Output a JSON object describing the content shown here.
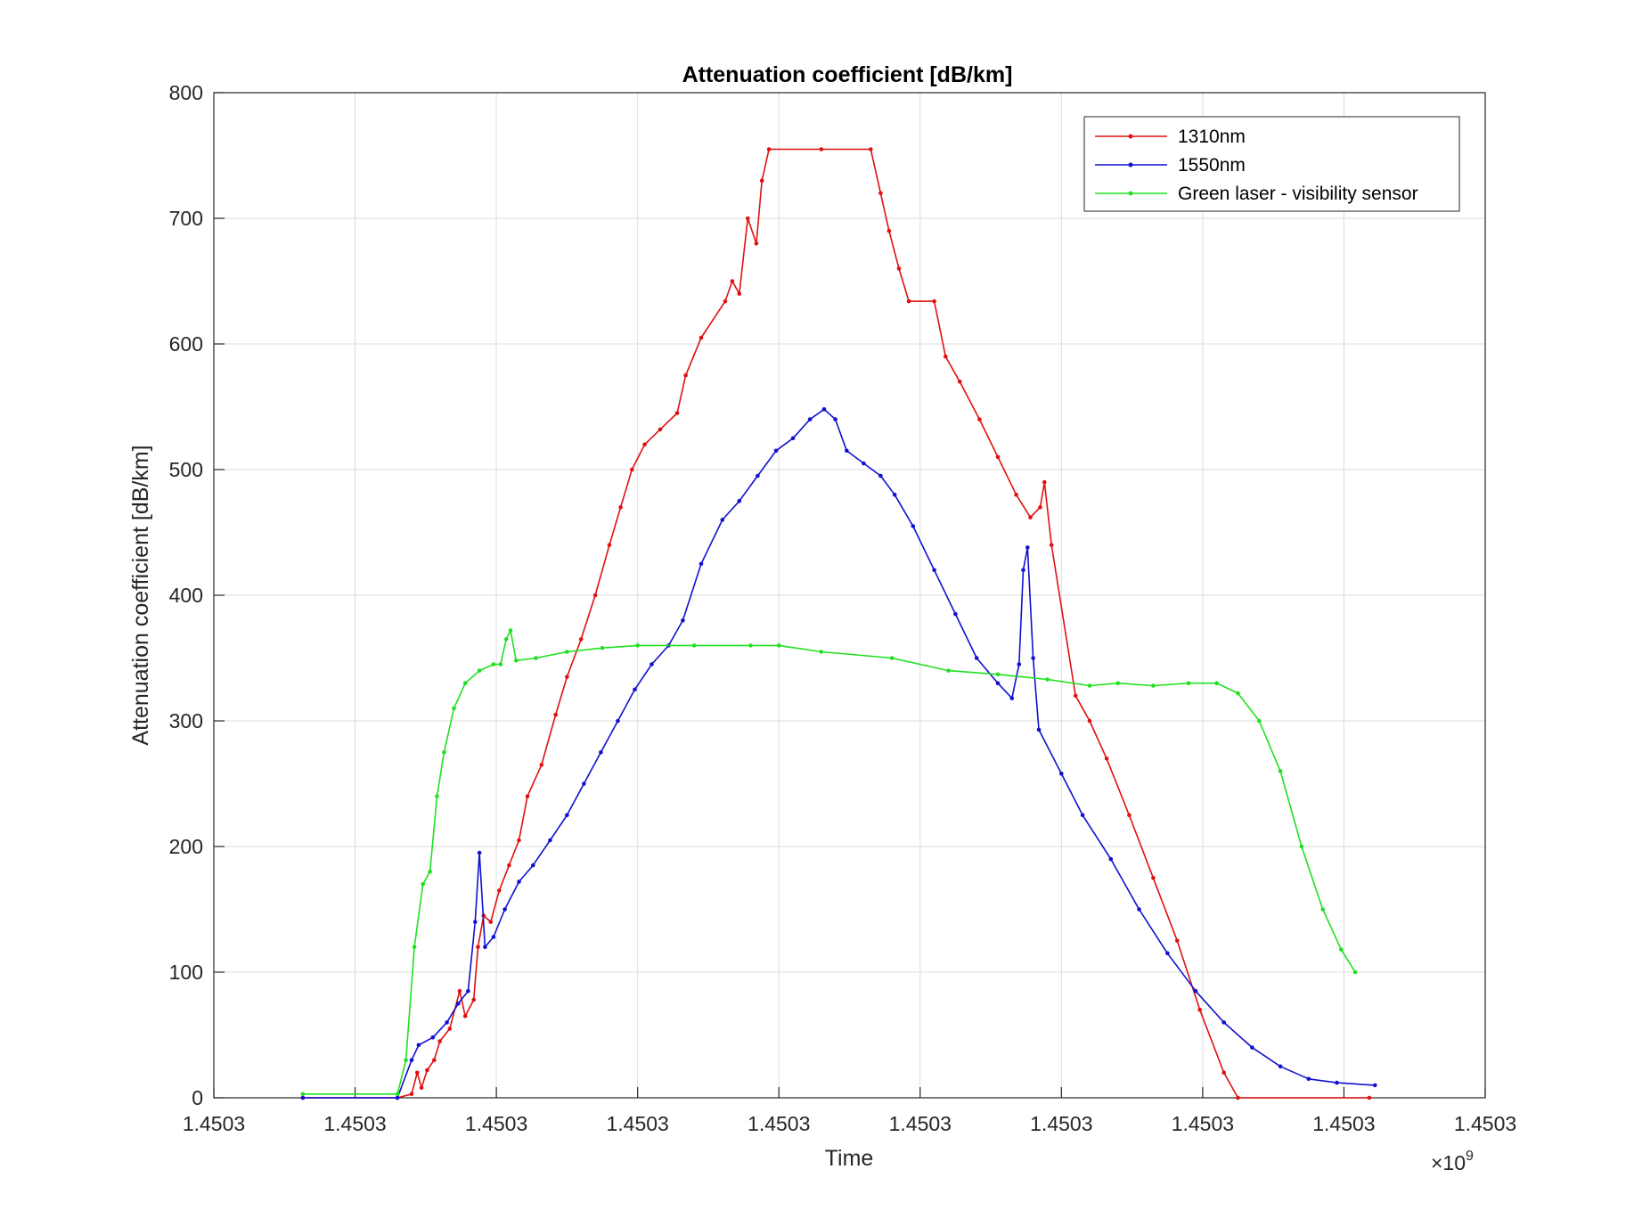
{
  "chart_data": {
    "type": "line",
    "title": "Attenuation coefficient [dB/km]",
    "xlabel": "Time",
    "ylabel": "Attenuation coefficient [dB/km]",
    "x_exponent_label": "×10",
    "x_exponent_power": "9",
    "xlim": [
      0,
      9
    ],
    "ylim": [
      0,
      800
    ],
    "x_tick_values": [
      0,
      1,
      2,
      3,
      4,
      5,
      6,
      7,
      8,
      9
    ],
    "x_tick_labels": [
      "1.4503",
      "1.4503",
      "1.4503",
      "1.4503",
      "1.4503",
      "1.4503",
      "1.4503",
      "1.4503",
      "1.4503",
      "1.4503"
    ],
    "y_ticks": [
      0,
      100,
      200,
      300,
      400,
      500,
      600,
      700,
      800
    ],
    "grid": true,
    "legend_position": "top-right",
    "series": [
      {
        "name": "1310nm",
        "color": "#e01010",
        "points": [
          [
            0.63,
            0
          ],
          [
            1.3,
            0
          ],
          [
            1.4,
            3
          ],
          [
            1.44,
            20
          ],
          [
            1.47,
            8
          ],
          [
            1.51,
            22
          ],
          [
            1.56,
            30
          ],
          [
            1.6,
            45
          ],
          [
            1.67,
            55
          ],
          [
            1.74,
            85
          ],
          [
            1.78,
            65
          ],
          [
            1.84,
            78
          ],
          [
            1.87,
            120
          ],
          [
            1.91,
            145
          ],
          [
            1.96,
            140
          ],
          [
            2.02,
            165
          ],
          [
            2.09,
            185
          ],
          [
            2.16,
            205
          ],
          [
            2.22,
            240
          ],
          [
            2.32,
            265
          ],
          [
            2.42,
            305
          ],
          [
            2.5,
            335
          ],
          [
            2.6,
            365
          ],
          [
            2.7,
            400
          ],
          [
            2.8,
            440
          ],
          [
            2.88,
            470
          ],
          [
            2.96,
            500
          ],
          [
            3.05,
            520
          ],
          [
            3.16,
            532
          ],
          [
            3.28,
            545
          ],
          [
            3.34,
            575
          ],
          [
            3.45,
            605
          ],
          [
            3.62,
            634
          ],
          [
            3.67,
            650
          ],
          [
            3.72,
            640
          ],
          [
            3.78,
            700
          ],
          [
            3.84,
            680
          ],
          [
            3.88,
            730
          ],
          [
            3.93,
            755
          ],
          [
            4.3,
            755
          ],
          [
            4.65,
            755
          ],
          [
            4.72,
            720
          ],
          [
            4.78,
            690
          ],
          [
            4.85,
            660
          ],
          [
            4.92,
            634
          ],
          [
            5.1,
            634
          ],
          [
            5.18,
            590
          ],
          [
            5.28,
            570
          ],
          [
            5.42,
            540
          ],
          [
            5.55,
            510
          ],
          [
            5.68,
            480
          ],
          [
            5.78,
            462
          ],
          [
            5.85,
            470
          ],
          [
            5.88,
            490
          ],
          [
            5.93,
            440
          ],
          [
            6.1,
            320
          ],
          [
            6.2,
            300
          ],
          [
            6.32,
            270
          ],
          [
            6.48,
            225
          ],
          [
            6.65,
            175
          ],
          [
            6.82,
            125
          ],
          [
            6.98,
            70
          ],
          [
            7.15,
            20
          ],
          [
            7.25,
            0
          ],
          [
            8.18,
            0
          ]
        ]
      },
      {
        "name": "1550nm",
        "color": "#1010d0",
        "points": [
          [
            0.63,
            0
          ],
          [
            1.3,
            0
          ],
          [
            1.4,
            30
          ],
          [
            1.45,
            42
          ],
          [
            1.55,
            48
          ],
          [
            1.65,
            60
          ],
          [
            1.73,
            75
          ],
          [
            1.8,
            85
          ],
          [
            1.85,
            140
          ],
          [
            1.88,
            195
          ],
          [
            1.92,
            120
          ],
          [
            1.98,
            128
          ],
          [
            2.06,
            150
          ],
          [
            2.16,
            172
          ],
          [
            2.26,
            185
          ],
          [
            2.38,
            205
          ],
          [
            2.5,
            225
          ],
          [
            2.62,
            250
          ],
          [
            2.74,
            275
          ],
          [
            2.86,
            300
          ],
          [
            2.98,
            325
          ],
          [
            3.1,
            345
          ],
          [
            3.22,
            360
          ],
          [
            3.32,
            380
          ],
          [
            3.45,
            425
          ],
          [
            3.6,
            460
          ],
          [
            3.72,
            475
          ],
          [
            3.85,
            495
          ],
          [
            3.98,
            515
          ],
          [
            4.1,
            525
          ],
          [
            4.22,
            540
          ],
          [
            4.32,
            548
          ],
          [
            4.4,
            540
          ],
          [
            4.48,
            515
          ],
          [
            4.6,
            505
          ],
          [
            4.72,
            495
          ],
          [
            4.82,
            480
          ],
          [
            4.95,
            455
          ],
          [
            5.1,
            420
          ],
          [
            5.25,
            385
          ],
          [
            5.4,
            350
          ],
          [
            5.55,
            330
          ],
          [
            5.65,
            318
          ],
          [
            5.7,
            345
          ],
          [
            5.73,
            420
          ],
          [
            5.76,
            438
          ],
          [
            5.8,
            350
          ],
          [
            5.84,
            293
          ],
          [
            6.0,
            258
          ],
          [
            6.15,
            225
          ],
          [
            6.35,
            190
          ],
          [
            6.55,
            150
          ],
          [
            6.75,
            115
          ],
          [
            6.95,
            85
          ],
          [
            7.15,
            60
          ],
          [
            7.35,
            40
          ],
          [
            7.55,
            25
          ],
          [
            7.75,
            15
          ],
          [
            7.95,
            12
          ],
          [
            8.22,
            10
          ]
        ]
      },
      {
        "name": "Green laser - visibility sensor",
        "color": "#20e020",
        "points": [
          [
            0.63,
            3
          ],
          [
            1.3,
            3
          ],
          [
            1.36,
            30
          ],
          [
            1.42,
            120
          ],
          [
            1.48,
            170
          ],
          [
            1.53,
            180
          ],
          [
            1.58,
            240
          ],
          [
            1.63,
            275
          ],
          [
            1.7,
            310
          ],
          [
            1.78,
            330
          ],
          [
            1.88,
            340
          ],
          [
            1.98,
            345
          ],
          [
            2.03,
            345
          ],
          [
            2.07,
            365
          ],
          [
            2.1,
            372
          ],
          [
            2.14,
            348
          ],
          [
            2.28,
            350
          ],
          [
            2.5,
            355
          ],
          [
            2.75,
            358
          ],
          [
            3.0,
            360
          ],
          [
            3.4,
            360
          ],
          [
            3.8,
            360
          ],
          [
            4.0,
            360
          ],
          [
            4.3,
            355
          ],
          [
            4.8,
            350
          ],
          [
            5.2,
            340
          ],
          [
            5.55,
            337
          ],
          [
            5.9,
            333
          ],
          [
            6.2,
            328
          ],
          [
            6.4,
            330
          ],
          [
            6.65,
            328
          ],
          [
            6.9,
            330
          ],
          [
            7.1,
            330
          ],
          [
            7.25,
            322
          ],
          [
            7.4,
            300
          ],
          [
            7.55,
            260
          ],
          [
            7.7,
            200
          ],
          [
            7.85,
            150
          ],
          [
            7.98,
            118
          ],
          [
            8.08,
            100
          ]
        ]
      }
    ]
  }
}
